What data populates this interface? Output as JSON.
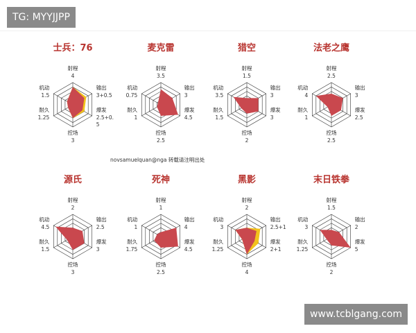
{
  "watermark_top": "TG: MYYJJPP",
  "watermark_bottom": "www.tcblgang.com",
  "credit": "novsamuelquan@nga 转载请注明出处",
  "colors": {
    "primary": "#c9484e",
    "secondary": "#f2c21b",
    "grid": "#333333",
    "title": "#b8342f"
  },
  "chart_data": [
    {
      "type": "radar",
      "title": "士兵：76",
      "axes": [
        {
          "name": "射程",
          "label": "4",
          "value": 4
        },
        {
          "name": "输出",
          "label": "3+0.5",
          "value": 3,
          "secondary": 3.5
        },
        {
          "name": "爆发",
          "label": "2.5+0.\n5",
          "value": 2.5,
          "secondary": 3
        },
        {
          "name": "控场",
          "label": "3",
          "value": 3
        },
        {
          "name": "耐久",
          "label": "1.25",
          "value": 1.25
        },
        {
          "name": "机动",
          "label": "1.5",
          "value": 1.5
        }
      ]
    },
    {
      "type": "radar",
      "title": "麦克雷",
      "axes": [
        {
          "name": "射程",
          "label": "3.5",
          "value": 3.5
        },
        {
          "name": "输出",
          "label": "3",
          "value": 3
        },
        {
          "name": "爆发",
          "label": "4.5",
          "value": 4.5
        },
        {
          "name": "控场",
          "label": "2.5",
          "value": 2.5
        },
        {
          "name": "耐久",
          "label": "1",
          "value": 1
        },
        {
          "name": "机动",
          "label": "0.75",
          "value": 0.75
        }
      ]
    },
    {
      "type": "radar",
      "title": "猎空",
      "axes": [
        {
          "name": "射程",
          "label": "1.5",
          "value": 1.5
        },
        {
          "name": "输出",
          "label": "3",
          "value": 3
        },
        {
          "name": "爆发",
          "label": "3",
          "value": 3
        },
        {
          "name": "控场",
          "label": "2",
          "value": 2
        },
        {
          "name": "耐久",
          "label": "1.5",
          "value": 1.5
        },
        {
          "name": "机动",
          "label": "3.5",
          "value": 3.5
        }
      ]
    },
    {
      "type": "radar",
      "title": "法老之鹰",
      "axes": [
        {
          "name": "射程",
          "label": "2.5",
          "value": 2.5
        },
        {
          "name": "输出",
          "label": "3",
          "value": 3
        },
        {
          "name": "爆发",
          "label": "2.5",
          "value": 2.5
        },
        {
          "name": "控场",
          "label": "2.5",
          "value": 2.5
        },
        {
          "name": "耐久",
          "label": "1",
          "value": 1
        },
        {
          "name": "机动",
          "label": "4",
          "value": 4
        }
      ]
    },
    {
      "type": "radar",
      "title": "源氏",
      "axes": [
        {
          "name": "射程",
          "label": "2",
          "value": 2
        },
        {
          "name": "输出",
          "label": "2.5",
          "value": 2.5
        },
        {
          "name": "爆发",
          "label": "3",
          "value": 3
        },
        {
          "name": "控场",
          "label": "3",
          "value": 3
        },
        {
          "name": "耐久",
          "label": "1.5",
          "value": 1.5
        },
        {
          "name": "机动",
          "label": "4.5",
          "value": 4.5
        }
      ]
    },
    {
      "type": "radar",
      "title": "死神",
      "axes": [
        {
          "name": "射程",
          "label": "1",
          "value": 1
        },
        {
          "name": "输出",
          "label": "4",
          "value": 4
        },
        {
          "name": "爆发",
          "label": "4.5",
          "value": 4.5
        },
        {
          "name": "控场",
          "label": "2.5",
          "value": 2.5
        },
        {
          "name": "耐久",
          "label": "1.75",
          "value": 1.75
        },
        {
          "name": "机动",
          "label": "1",
          "value": 1
        }
      ]
    },
    {
      "type": "radar",
      "title": "黑影",
      "axes": [
        {
          "name": "射程",
          "label": "2",
          "value": 2
        },
        {
          "name": "输出",
          "label": "2.5+1",
          "value": 2.5,
          "secondary": 3.5
        },
        {
          "name": "爆发",
          "label": "2+1",
          "value": 2,
          "secondary": 3
        },
        {
          "name": "控场",
          "label": "4",
          "value": 4
        },
        {
          "name": "耐久",
          "label": "1.25",
          "value": 1.25
        },
        {
          "name": "机动",
          "label": "3",
          "value": 3
        }
      ]
    },
    {
      "type": "radar",
      "title": "末日铁拳",
      "axes": [
        {
          "name": "射程",
          "label": "1.5",
          "value": 1.5
        },
        {
          "name": "输出",
          "label": "2",
          "value": 2
        },
        {
          "name": "爆发",
          "label": "5",
          "value": 5
        },
        {
          "name": "控场",
          "label": "2",
          "value": 2
        },
        {
          "name": "耐久",
          "label": "1.25",
          "value": 1.25
        },
        {
          "name": "机动",
          "label": "3",
          "value": 3
        }
      ]
    }
  ]
}
